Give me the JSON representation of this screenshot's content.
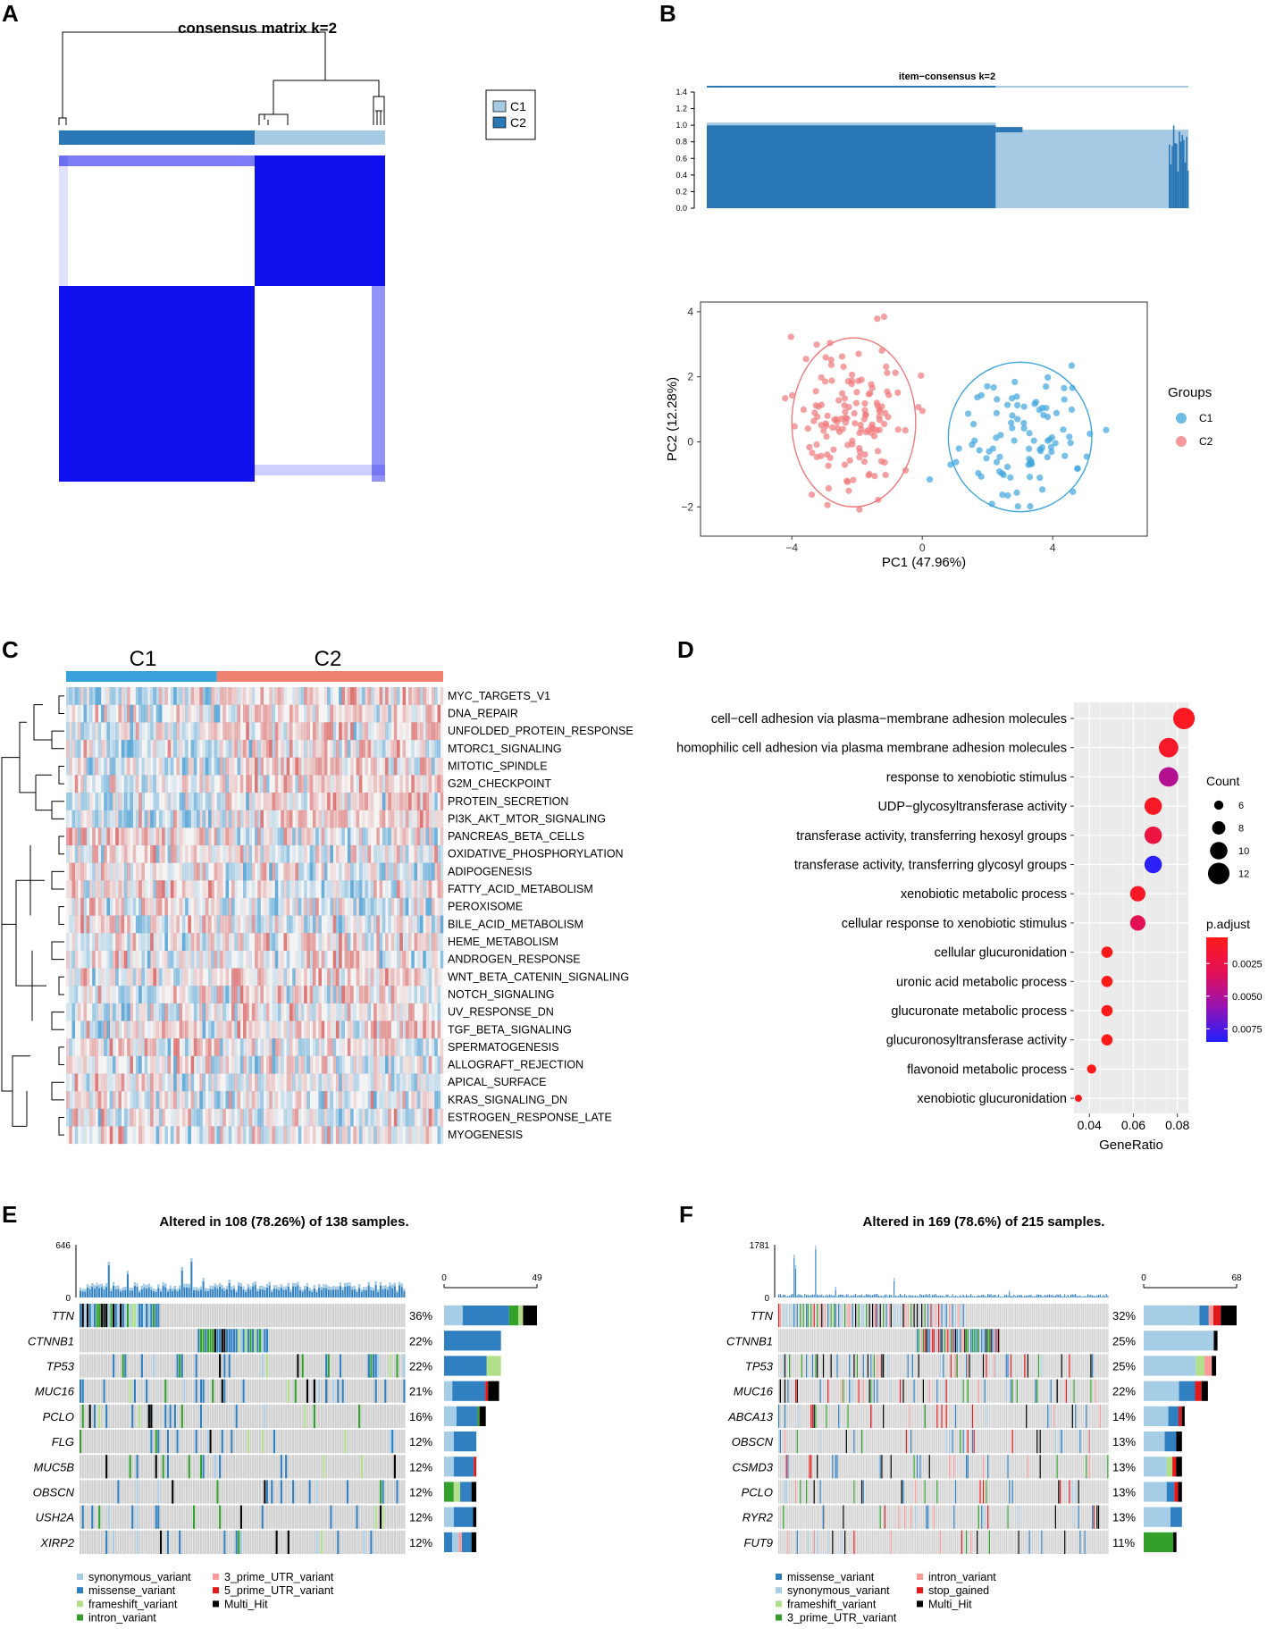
{
  "panels": {
    "A": "A",
    "B": "B",
    "C": "C",
    "D": "D",
    "E": "E",
    "F": "F"
  },
  "colors": {
    "c1_light": "#a6cae3",
    "c2_dark": "#2a77b5",
    "heat_blue": "#1010ee",
    "pca_c1": "#3ea5dd",
    "pca_c2": "#f0787a",
    "missense": "#2f7fc1",
    "synonymous": "#a6cde6",
    "frameshift": "#b2df8a",
    "intron": "#33a02c",
    "utr3": "#fb9a99",
    "utr5": "#e31a1c",
    "stop_gained": "#e31a1c",
    "multi_hit": "#000000",
    "oncogrid_bg": "#cfcfcf",
    "heat_red": "#d95f5f",
    "heat_blueC": "#4a9fd4"
  },
  "chart_data": [
    {
      "id": "A",
      "type": "heatmap",
      "title": "consensus matrix k=2",
      "legend": [
        {
          "label": "C1",
          "color": "#a6cae3"
        },
        {
          "label": "C2",
          "color": "#2a77b5"
        }
      ],
      "cluster_fractions": {
        "C2": 0.6,
        "C1": 0.4
      }
    },
    {
      "id": "B1",
      "type": "bar",
      "title": "item−consensus k=2",
      "yticks": [
        "0.0",
        "0.2",
        "0.4",
        "0.6",
        "0.8",
        "1.0",
        "1.2",
        "1.4"
      ],
      "ylim": [
        0,
        1.4
      ],
      "groups": [
        {
          "name": "C2",
          "fraction": 0.6,
          "color": "#2a77b5"
        },
        {
          "name": "C1",
          "fraction": 0.4,
          "color": "#a6cae3"
        }
      ]
    },
    {
      "id": "B2",
      "type": "scatter",
      "xlabel": "PC1 (47.96%)",
      "ylabel": "PC2 (12.28%)",
      "xlim": [
        -6.8,
        6.9
      ],
      "ylim": [
        -2.9,
        4.3
      ],
      "xticks": [
        -4,
        0,
        4
      ],
      "yticks": [
        -2,
        0,
        2,
        4
      ],
      "xtick_labels": [
        "−4",
        "0",
        "4"
      ],
      "ytick_labels": [
        "−2",
        "0",
        "2",
        "4"
      ],
      "legend_title": "Groups",
      "series": [
        {
          "name": "C1",
          "color": "#3ea5dd",
          "center": [
            3.0,
            0.15
          ],
          "rx": 2.2,
          "ry": 2.3,
          "n": 95
        },
        {
          "name": "C2",
          "color": "#f0787a",
          "center": [
            -2.1,
            0.6
          ],
          "rx": 1.9,
          "ry": 2.6,
          "n": 140
        }
      ]
    },
    {
      "id": "C",
      "type": "heatmap",
      "groups": [
        {
          "name": "C1",
          "fraction": 0.4,
          "color": "#3aa1dc"
        },
        {
          "name": "C2",
          "fraction": 0.6,
          "color": "#f08070"
        }
      ],
      "rows": [
        "MYC_TARGETS_V1",
        "DNA_REPAIR",
        "UNFOLDED_PROTEIN_RESPONSE",
        "MTORC1_SIGNALING",
        "MITOTIC_SPINDLE",
        "G2M_CHECKPOINT",
        "PROTEIN_SECRETION",
        "PI3K_AKT_MTOR_SIGNALING",
        "PANCREAS_BETA_CELLS",
        "OXIDATIVE_PHOSPHORYLATION",
        "ADIPOGENESIS",
        "FATTY_ACID_METABOLISM",
        "PEROXISOME",
        "BILE_ACID_METABOLISM",
        "HEME_METABOLISM",
        "ANDROGEN_RESPONSE",
        "WNT_BETA_CATENIN_SIGNALING",
        "NOTCH_SIGNALING",
        "UV_RESPONSE_DN",
        "TGF_BETA_SIGNALING",
        "SPERMATOGENESIS",
        "ALLOGRAFT_REJECTION",
        "APICAL_SURFACE",
        "KRAS_SIGNALING_DN",
        "ESTROGEN_RESPONSE_LATE",
        "MYOGENESIS"
      ]
    },
    {
      "id": "D",
      "type": "scatter",
      "xlabel": "GeneRatio",
      "xlim": [
        0.033,
        0.085
      ],
      "xticks": [
        0.04,
        0.06,
        0.08
      ],
      "xtick_labels": [
        "0.04",
        "0.06",
        "0.08"
      ],
      "terms": [
        {
          "term": "cell−cell adhesion via plasma−membrane adhesion molecules",
          "ratio": 0.083,
          "count": 12,
          "padj": 0.0008
        },
        {
          "term": "homophilic cell adhesion via plasma membrane adhesion molecules",
          "ratio": 0.076,
          "count": 11,
          "padj": 0.0012
        },
        {
          "term": "response to xenobiotic stimulus",
          "ratio": 0.076,
          "count": 11,
          "padj": 0.0048
        },
        {
          "term": "UDP−glycosyltransferase activity",
          "ratio": 0.069,
          "count": 10,
          "padj": 0.001
        },
        {
          "term": "transferase activity, transferring hexosyl groups",
          "ratio": 0.069,
          "count": 10,
          "padj": 0.0022
        },
        {
          "term": "transferase activity, transferring glycosyl groups",
          "ratio": 0.069,
          "count": 10,
          "padj": 0.0082
        },
        {
          "term": "xenobiotic metabolic process",
          "ratio": 0.062,
          "count": 9,
          "padj": 0.001
        },
        {
          "term": "cellular response to xenobiotic stimulus",
          "ratio": 0.062,
          "count": 9,
          "padj": 0.003
        },
        {
          "term": "cellular glucuronidation",
          "ratio": 0.048,
          "count": 7,
          "padj": 0.0005
        },
        {
          "term": "uronic acid metabolic process",
          "ratio": 0.048,
          "count": 7,
          "padj": 0.0005
        },
        {
          "term": "glucuronate metabolic process",
          "ratio": 0.048,
          "count": 7,
          "padj": 0.0005
        },
        {
          "term": "glucuronosyltransferase activity",
          "ratio": 0.048,
          "count": 7,
          "padj": 0.0005
        },
        {
          "term": "flavonoid metabolic process",
          "ratio": 0.041,
          "count": 6,
          "padj": 0.0005
        },
        {
          "term": "xenobiotic glucuronidation",
          "ratio": 0.035,
          "count": 5,
          "padj": 0.0005
        }
      ],
      "count_legend_title": "Count",
      "count_legend": [
        "6",
        "8",
        "10",
        "12"
      ],
      "padj_legend_title": "p.adjust",
      "padj_legend": [
        "0.0025",
        "0.0050",
        "0.0075"
      ]
    },
    {
      "id": "E",
      "type": "heatmap",
      "title": "Altered in 108 (78.26%) of 138 samples.",
      "tmb_max": "646",
      "tmb_min": "0",
      "bar_min": "0",
      "bar_max": "49",
      "n_samples": 138,
      "genes": [
        {
          "gene": "TTN",
          "pct": "36%",
          "count": 49
        },
        {
          "gene": "CTNNB1",
          "pct": "22%",
          "count": 30
        },
        {
          "gene": "TP53",
          "pct": "22%",
          "count": 30
        },
        {
          "gene": "MUC16",
          "pct": "21%",
          "count": 29
        },
        {
          "gene": "PCLO",
          "pct": "16%",
          "count": 22
        },
        {
          "gene": "FLG",
          "pct": "12%",
          "count": 17
        },
        {
          "gene": "MUC5B",
          "pct": "12%",
          "count": 17
        },
        {
          "gene": "OBSCN",
          "pct": "12%",
          "count": 17
        },
        {
          "gene": "USH2A",
          "pct": "12%",
          "count": 17
        },
        {
          "gene": "XIRP2",
          "pct": "12%",
          "count": 17
        }
      ],
      "legend": [
        "synonymous_variant",
        "missense_variant",
        "frameshift_variant",
        "intron_variant",
        "3_prime_UTR_variant",
        "5_prime_UTR_variant",
        "Multi_Hit"
      ]
    },
    {
      "id": "F",
      "type": "heatmap",
      "title": "Altered in 169 (78.6%) of 215 samples.",
      "tmb_max": "1781",
      "tmb_min": "0",
      "bar_min": "0",
      "bar_max": "68",
      "n_samples": 215,
      "genes": [
        {
          "gene": "TTN",
          "pct": "32%",
          "count": 68
        },
        {
          "gene": "CTNNB1",
          "pct": "25%",
          "count": 54
        },
        {
          "gene": "TP53",
          "pct": "25%",
          "count": 53
        },
        {
          "gene": "MUC16",
          "pct": "22%",
          "count": 47
        },
        {
          "gene": "ABCA13",
          "pct": "14%",
          "count": 30
        },
        {
          "gene": "OBSCN",
          "pct": "13%",
          "count": 28
        },
        {
          "gene": "CSMD3",
          "pct": "13%",
          "count": 28
        },
        {
          "gene": "PCLO",
          "pct": "13%",
          "count": 28
        },
        {
          "gene": "RYR2",
          "pct": "13%",
          "count": 28
        },
        {
          "gene": "FUT9",
          "pct": "11%",
          "count": 24
        }
      ],
      "legend": [
        "missense_variant",
        "synonymous_variant",
        "frameshift_variant",
        "3_prime_UTR_variant",
        "intron_variant",
        "stop_gained",
        "Multi_Hit"
      ]
    }
  ]
}
